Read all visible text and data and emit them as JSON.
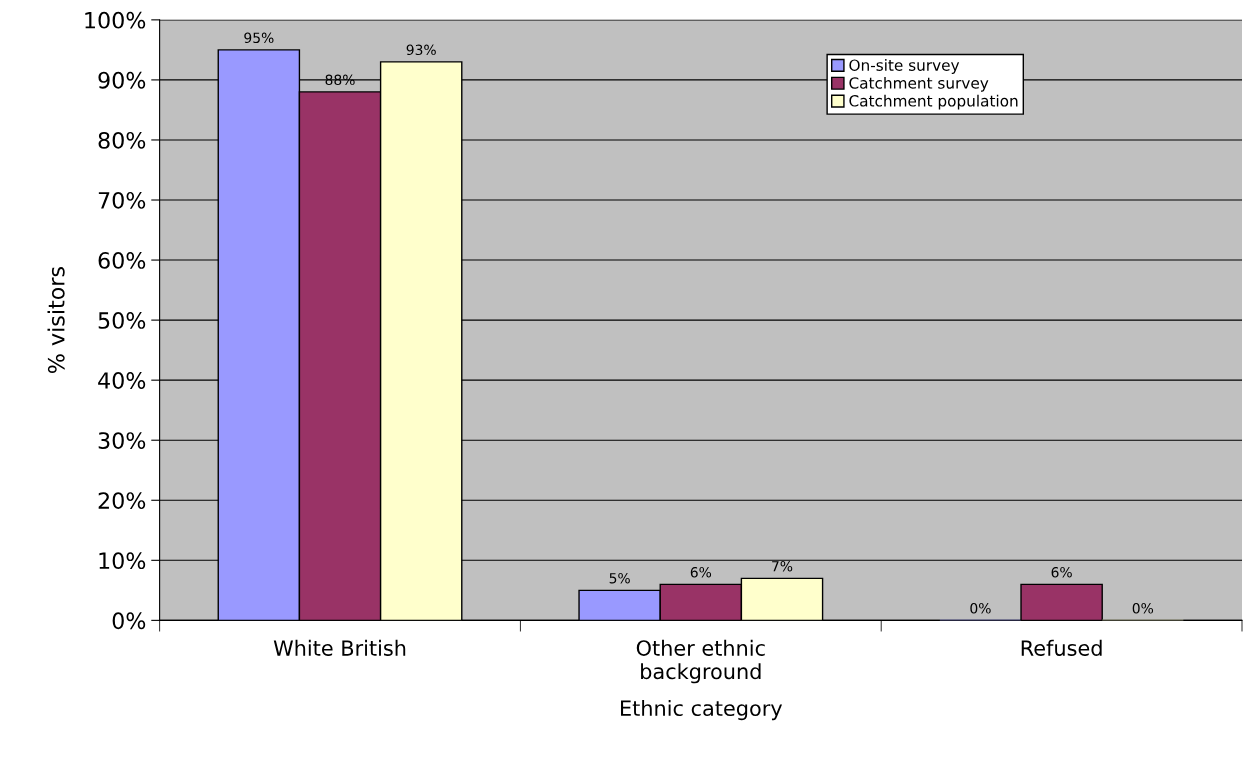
{
  "chart_data": {
    "type": "bar",
    "xlabel": "Ethnic category",
    "ylabel": "% visitors",
    "categories": [
      "White British",
      "Other ethnic\nbackground",
      "Refused"
    ],
    "series": [
      {
        "name": "On-site survey",
        "color": "#9999ff",
        "values": [
          95,
          5,
          0
        ],
        "value_labels": [
          "95%",
          "5%",
          "0%"
        ]
      },
      {
        "name": "Catchment survey",
        "color": "#993366",
        "values": [
          88,
          6,
          6
        ],
        "value_labels": [
          "88%",
          "6%",
          "6%"
        ]
      },
      {
        "name": "Catchment population",
        "color": "#ffffcc",
        "values": [
          93,
          7,
          0
        ],
        "value_labels": [
          "93%",
          "7%",
          "0%"
        ]
      }
    ],
    "ylim": [
      0,
      100
    ],
    "yticks": [
      {
        "value": 0,
        "label": "0%"
      },
      {
        "value": 10,
        "label": "10%"
      },
      {
        "value": 20,
        "label": "20%"
      },
      {
        "value": 30,
        "label": "30%"
      },
      {
        "value": 40,
        "label": "40%"
      },
      {
        "value": 50,
        "label": "50%"
      },
      {
        "value": 60,
        "label": "60%"
      },
      {
        "value": 70,
        "label": "70%"
      },
      {
        "value": 80,
        "label": "80%"
      },
      {
        "value": 90,
        "label": "90%"
      },
      {
        "value": 100,
        "label": "100%"
      }
    ],
    "grid": "y",
    "legend": "top right"
  }
}
